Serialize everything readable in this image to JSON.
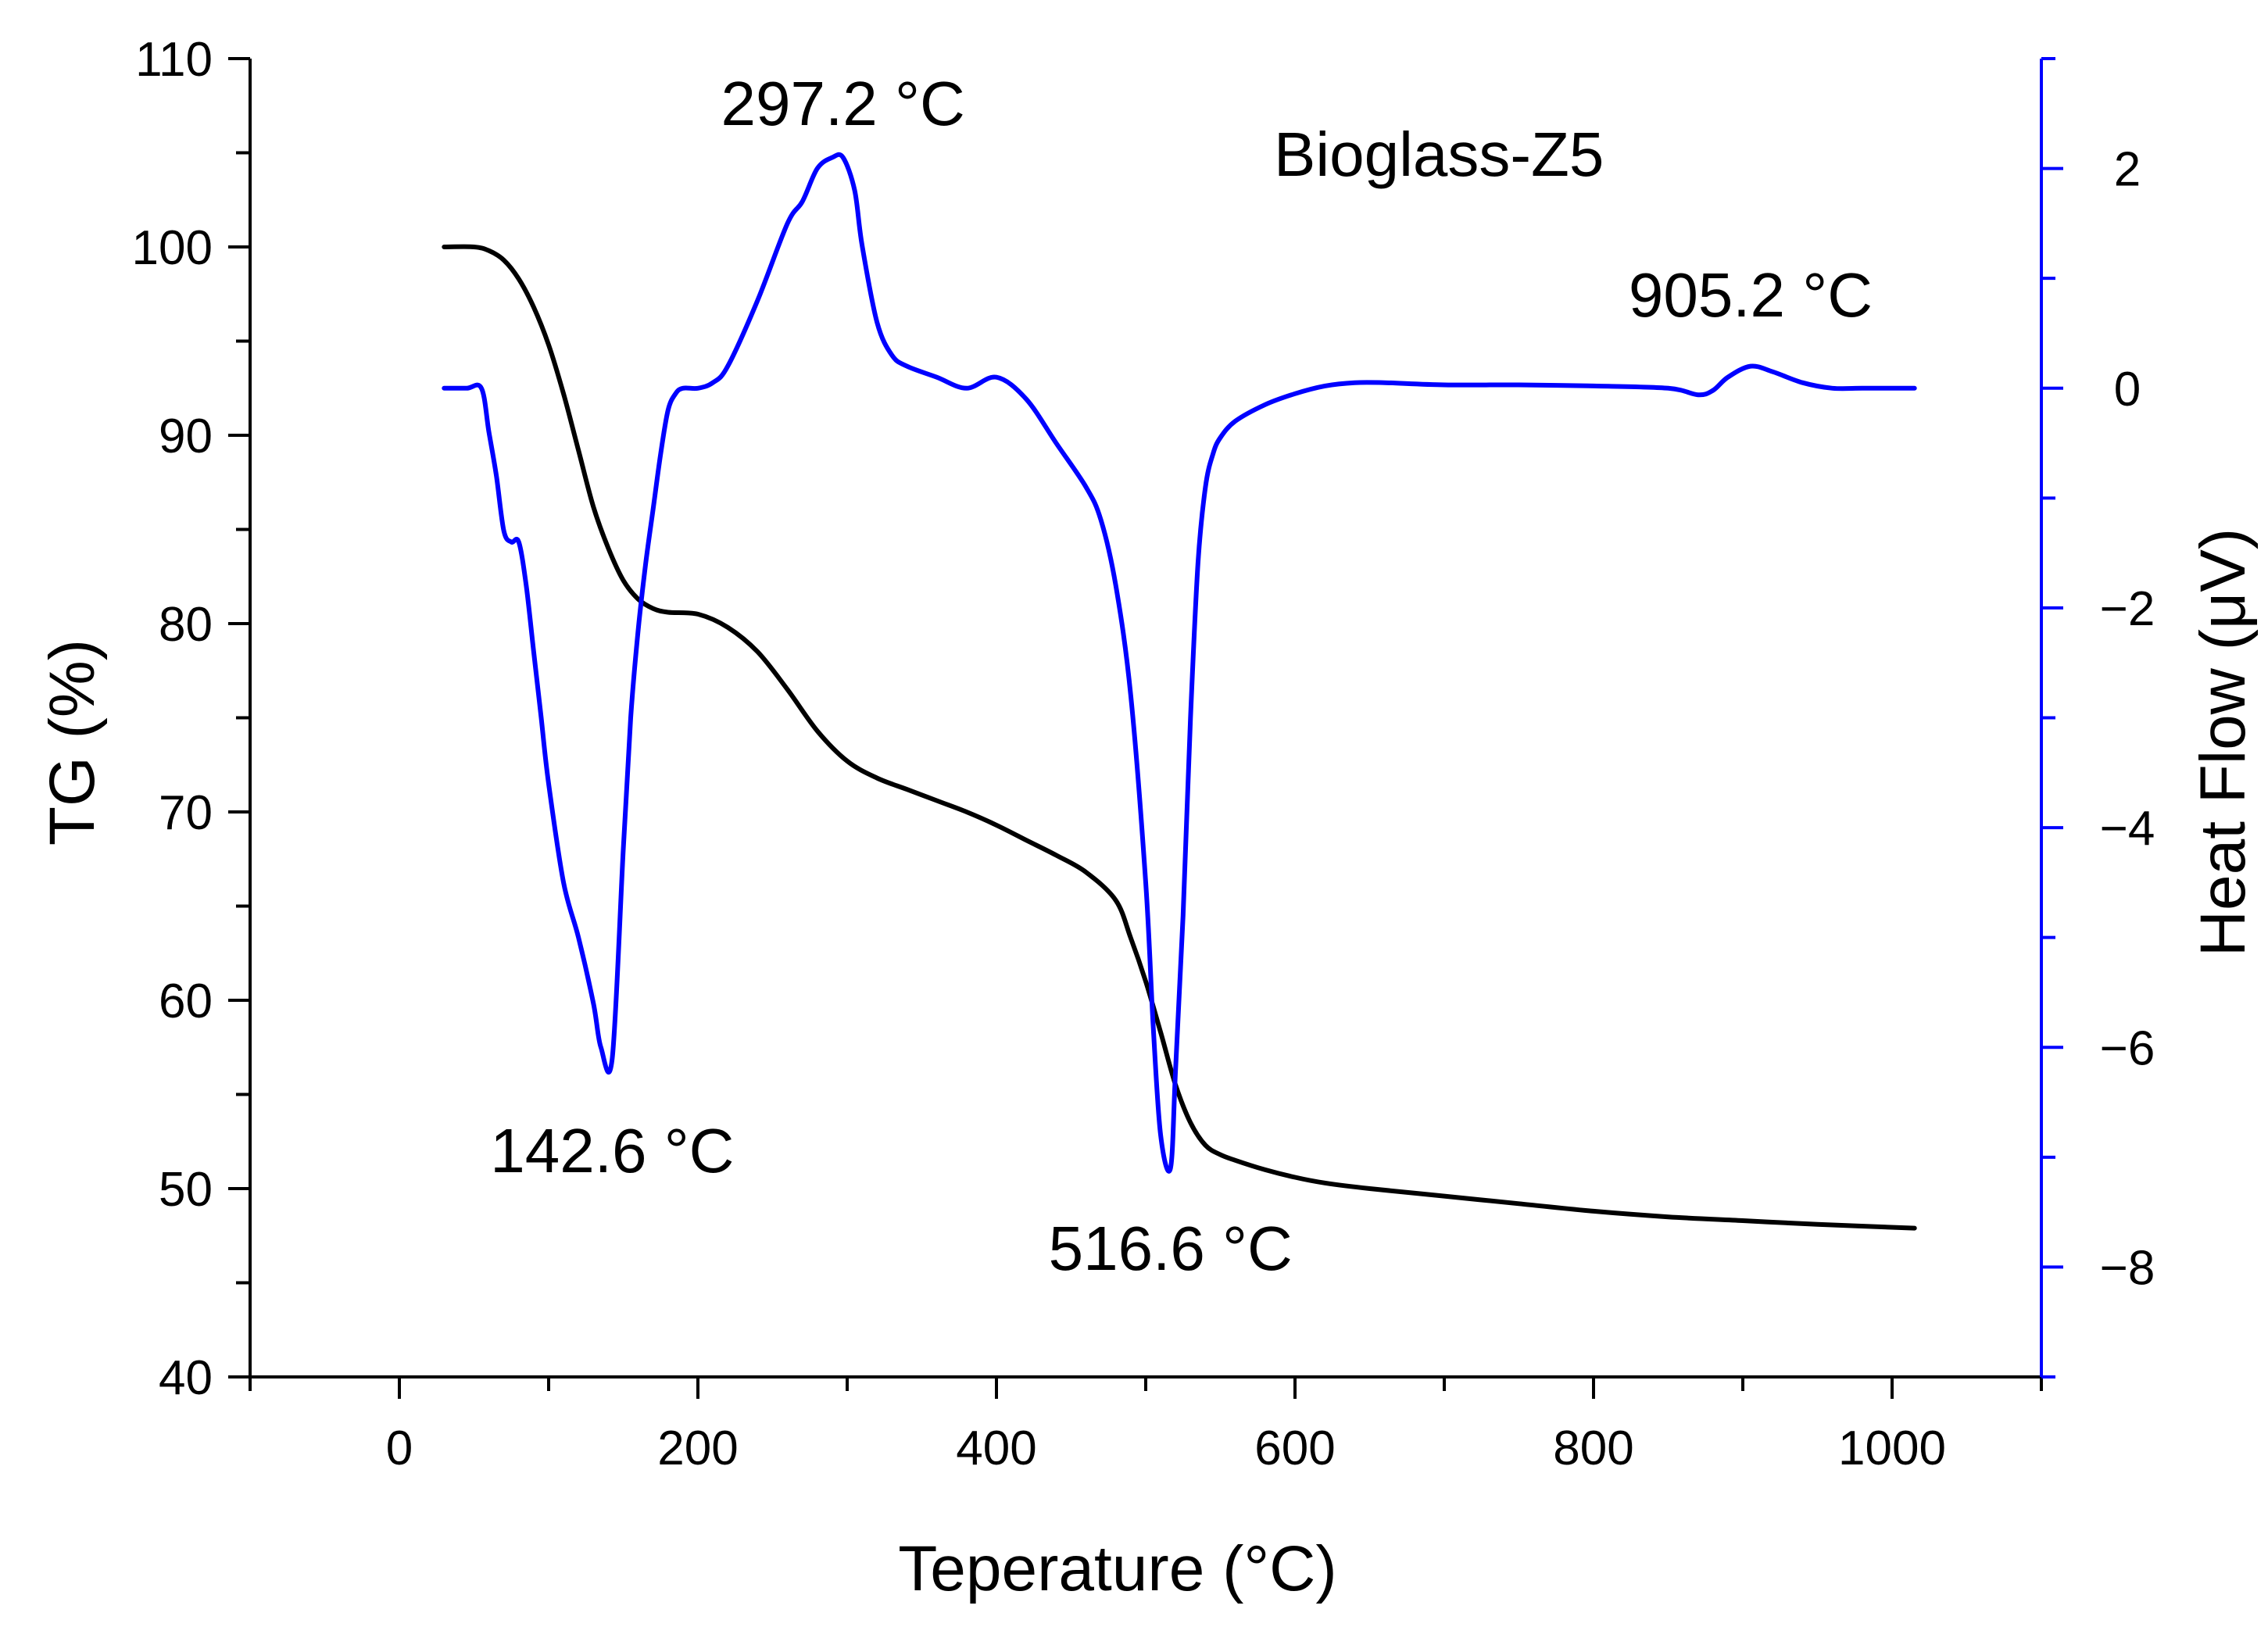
{
  "chart_data": {
    "type": "line",
    "title": "",
    "sample_label": "Bioglass-Z5",
    "xlabel": "Teperature (°C)",
    "ylabel_left": "TG (%)",
    "ylabel_right": "Heat Flow (μV)",
    "xlim": [
      -100,
      1100
    ],
    "ylim_left": [
      40,
      110
    ],
    "ylim_right": [
      -9,
      3
    ],
    "x_ticks": [
      0,
      200,
      400,
      600,
      800,
      1000
    ],
    "y_left_ticks": [
      40,
      50,
      60,
      70,
      80,
      90,
      100,
      110
    ],
    "y_right_ticks": [
      -8,
      -6,
      -4,
      -2,
      0,
      2
    ],
    "grid": false,
    "colors": {
      "tg": "#000000",
      "heat_flow": "#0000ff",
      "axis": "#000000",
      "right_axis": "#0000ff"
    },
    "series": [
      {
        "name": "TG",
        "axis": "left",
        "color": "#000000",
        "x": [
          30,
          50,
          60,
          70,
          80,
          90,
          100,
          110,
          120,
          130,
          140,
          150,
          160,
          170,
          180,
          200,
          220,
          240,
          260,
          280,
          300,
          320,
          340,
          360,
          380,
          400,
          420,
          440,
          460,
          480,
          490,
          500,
          510,
          520,
          530,
          540,
          550,
          560,
          580,
          600,
          620,
          650,
          700,
          750,
          800,
          850,
          900,
          950,
          1015
        ],
        "values": [
          100,
          100,
          99.8,
          99.3,
          98.3,
          96.8,
          94.8,
          92.2,
          89.2,
          86.2,
          84.0,
          82.3,
          81.3,
          80.8,
          80.6,
          80.5,
          79.8,
          78.5,
          76.5,
          74.3,
          72.7,
          71.8,
          71.2,
          70.6,
          70.0,
          69.3,
          68.5,
          67.7,
          66.8,
          65.3,
          63.3,
          61.0,
          58.3,
          55.5,
          53.5,
          52.3,
          51.8,
          51.5,
          51.0,
          50.6,
          50.3,
          50.0,
          49.6,
          49.2,
          48.8,
          48.5,
          48.3,
          48.1,
          47.9
        ]
      },
      {
        "name": "Heat Flow",
        "axis": "right",
        "color": "#0000ff",
        "x": [
          30,
          45,
          55,
          60,
          65,
          70,
          75,
          80,
          85,
          90,
          95,
          100,
          110,
          120,
          130,
          135,
          142.6,
          150,
          155,
          160,
          165,
          170,
          175,
          180,
          185,
          190,
          200,
          210,
          220,
          240,
          260,
          270,
          280,
          290,
          297.2,
          305,
          310,
          320,
          330,
          340,
          360,
          380,
          400,
          420,
          440,
          460,
          470,
          480,
          490,
          500,
          505,
          510,
          516.6,
          520,
          525,
          530,
          535,
          540,
          545,
          550,
          560,
          580,
          600,
          620,
          640,
          660,
          700,
          750,
          800,
          850,
          870,
          880,
          890,
          905.2,
          920,
          940,
          960,
          980,
          1000,
          1015
        ],
        "values": [
          0,
          0,
          0,
          -0.4,
          -0.8,
          -1.3,
          -1.4,
          -1.4,
          -1.8,
          -2.4,
          -3.0,
          -3.6,
          -4.5,
          -5.0,
          -5.6,
          -6.0,
          -6.1,
          -4.2,
          -3.0,
          -2.2,
          -1.6,
          -1.1,
          -0.6,
          -0.2,
          -0.05,
          0,
          0,
          0.05,
          0.2,
          0.8,
          1.5,
          1.7,
          2.0,
          2.1,
          2.1,
          1.8,
          1.3,
          0.6,
          0.3,
          0.2,
          0.1,
          0,
          0.1,
          -0.1,
          -0.5,
          -0.9,
          -1.2,
          -1.8,
          -2.8,
          -4.5,
          -5.8,
          -6.8,
          -7.1,
          -6.2,
          -4.8,
          -3.0,
          -1.6,
          -0.9,
          -0.6,
          -0.45,
          -0.3,
          -0.15,
          -0.05,
          0.02,
          0.05,
          0.05,
          0.03,
          0.03,
          0.02,
          0,
          -0.06,
          -0.02,
          0.1,
          0.2,
          0.15,
          0.05,
          0,
          0,
          0,
          0
        ]
      }
    ],
    "annotations": [
      {
        "text": "297.2 °C",
        "x": 297.2
      },
      {
        "text": "142.6 °C",
        "x": 142.6
      },
      {
        "text": "516.6 °C",
        "x": 516.6
      },
      {
        "text": "905.2 °C",
        "x": 905.2
      }
    ]
  }
}
